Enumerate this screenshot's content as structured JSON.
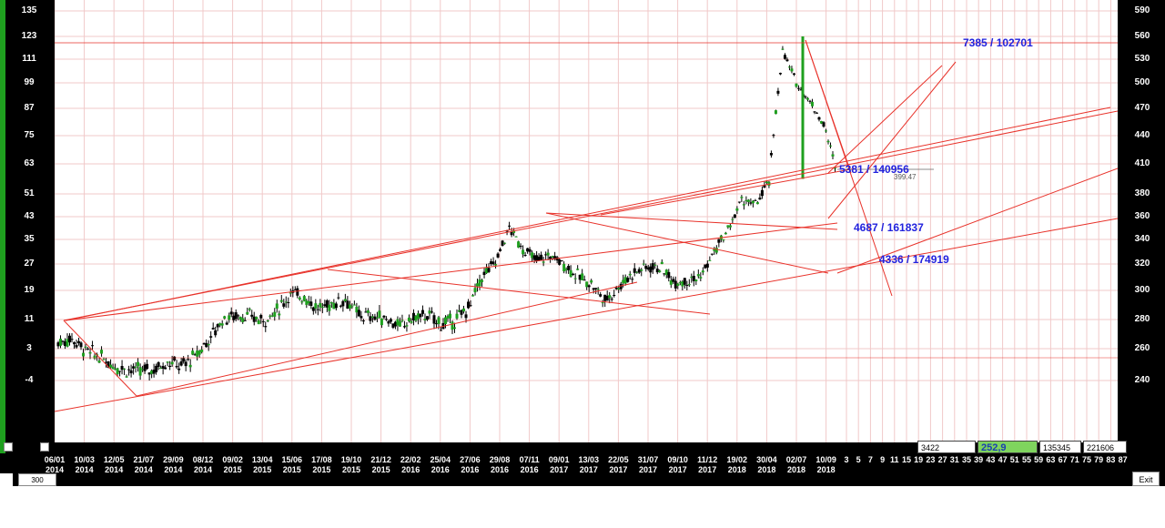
{
  "left_axis_ticks": [
    "135",
    "123",
    "111",
    "99",
    "87",
    "75",
    "63",
    "51",
    "43",
    "35",
    "27",
    "19",
    "11",
    "3",
    "-4"
  ],
  "right_axis_ticks": [
    "590",
    "560",
    "530",
    "500",
    "470",
    "440",
    "410",
    "380",
    "360",
    "340",
    "320",
    "300",
    "280",
    "260",
    "240"
  ],
  "annotations": {
    "top_right": "7385 / 102701",
    "mid": "5381 / 140956",
    "lower": "4687 / 161837",
    "lowest": "4336 / 174919",
    "cursor_value": "399.47"
  },
  "bottom_boxes": {
    "box1": "3422",
    "box2": "252,9",
    "box3": "135345",
    "box4": "221606"
  },
  "zoom_value": "300",
  "exit_label": "Exit",
  "colors": {
    "candle": "#000000",
    "candle_up": "#1fa01f",
    "trendline": "#e8322a",
    "grid": "#f1c9c9"
  },
  "chart_data": {
    "type": "candlestick",
    "x_labels": [
      {
        "d": "06/01",
        "y": "2014"
      },
      {
        "d": "10/03",
        "y": "2014"
      },
      {
        "d": "12/05",
        "y": "2014"
      },
      {
        "d": "21/07",
        "y": "2014"
      },
      {
        "d": "29/09",
        "y": "2014"
      },
      {
        "d": "08/12",
        "y": "2014"
      },
      {
        "d": "09/02",
        "y": "2015"
      },
      {
        "d": "13/04",
        "y": "2015"
      },
      {
        "d": "15/06",
        "y": "2015"
      },
      {
        "d": "17/08",
        "y": "2015"
      },
      {
        "d": "19/10",
        "y": "2015"
      },
      {
        "d": "21/12",
        "y": "2015"
      },
      {
        "d": "22/02",
        "y": "2016"
      },
      {
        "d": "25/04",
        "y": "2016"
      },
      {
        "d": "27/06",
        "y": "2016"
      },
      {
        "d": "29/08",
        "y": "2016"
      },
      {
        "d": "07/11",
        "y": "2016"
      },
      {
        "d": "09/01",
        "y": "2017"
      },
      {
        "d": "13/03",
        "y": "2017"
      },
      {
        "d": "22/05",
        "y": "2017"
      },
      {
        "d": "31/07",
        "y": "2017"
      },
      {
        "d": "09/10",
        "y": "2017"
      },
      {
        "d": "11/12",
        "y": "2017"
      },
      {
        "d": "19/02",
        "y": "2018"
      },
      {
        "d": "30/04",
        "y": "2018"
      },
      {
        "d": "02/07",
        "y": "2018"
      },
      {
        "d": "10/09",
        "y": "2018"
      }
    ],
    "future_ticks": [
      "3",
      "5",
      "7",
      "9",
      "11",
      "15",
      "19",
      "23",
      "27",
      "31",
      "35",
      "39",
      "43",
      "47",
      "51",
      "55",
      "59",
      "63",
      "67",
      "71",
      "75",
      "79",
      "83",
      "87"
    ],
    "close_series": [
      {
        "t": 0,
        "v": 264
      },
      {
        "t": 1,
        "v": 267
      },
      {
        "t": 2,
        "v": 259
      },
      {
        "t": 3,
        "v": 255
      },
      {
        "t": 4,
        "v": 250
      },
      {
        "t": 5,
        "v": 247
      },
      {
        "t": 6,
        "v": 246
      },
      {
        "t": 7,
        "v": 247
      },
      {
        "t": 8,
        "v": 252
      },
      {
        "t": 9,
        "v": 249
      },
      {
        "t": 10,
        "v": 255
      },
      {
        "t": 11,
        "v": 266
      },
      {
        "t": 12,
        "v": 280
      },
      {
        "t": 13,
        "v": 283
      },
      {
        "t": 14,
        "v": 282
      },
      {
        "t": 15,
        "v": 279
      },
      {
        "t": 16,
        "v": 286
      },
      {
        "t": 17,
        "v": 298
      },
      {
        "t": 18,
        "v": 296
      },
      {
        "t": 19,
        "v": 287
      },
      {
        "t": 20,
        "v": 291
      },
      {
        "t": 21,
        "v": 294
      },
      {
        "t": 22,
        "v": 283
      },
      {
        "t": 23,
        "v": 282
      },
      {
        "t": 24,
        "v": 281
      },
      {
        "t": 25,
        "v": 275
      },
      {
        "t": 26,
        "v": 281
      },
      {
        "t": 27,
        "v": 283
      },
      {
        "t": 28,
        "v": 277
      },
      {
        "t": 29,
        "v": 279
      },
      {
        "t": 30,
        "v": 288
      },
      {
        "t": 31,
        "v": 310
      },
      {
        "t": 32,
        "v": 322
      },
      {
        "t": 33,
        "v": 350
      },
      {
        "t": 34,
        "v": 332
      },
      {
        "t": 35,
        "v": 323
      },
      {
        "t": 36,
        "v": 327
      },
      {
        "t": 37,
        "v": 320
      },
      {
        "t": 38,
        "v": 311
      },
      {
        "t": 39,
        "v": 305
      },
      {
        "t": 40,
        "v": 293
      },
      {
        "t": 41,
        "v": 303
      },
      {
        "t": 42,
        "v": 313
      },
      {
        "t": 43,
        "v": 318
      },
      {
        "t": 44,
        "v": 318
      },
      {
        "t": 45,
        "v": 307
      },
      {
        "t": 46,
        "v": 308
      },
      {
        "t": 47,
        "v": 310
      },
      {
        "t": 48,
        "v": 330
      },
      {
        "t": 49,
        "v": 348
      },
      {
        "t": 50,
        "v": 375
      },
      {
        "t": 51,
        "v": 370
      },
      {
        "t": 52,
        "v": 392
      },
      {
        "t": 53,
        "v": 540
      },
      {
        "t": 54,
        "v": 500
      },
      {
        "t": 55,
        "v": 478
      },
      {
        "t": 56,
        "v": 452
      },
      {
        "t": 57,
        "v": 400
      }
    ],
    "grid": true
  }
}
